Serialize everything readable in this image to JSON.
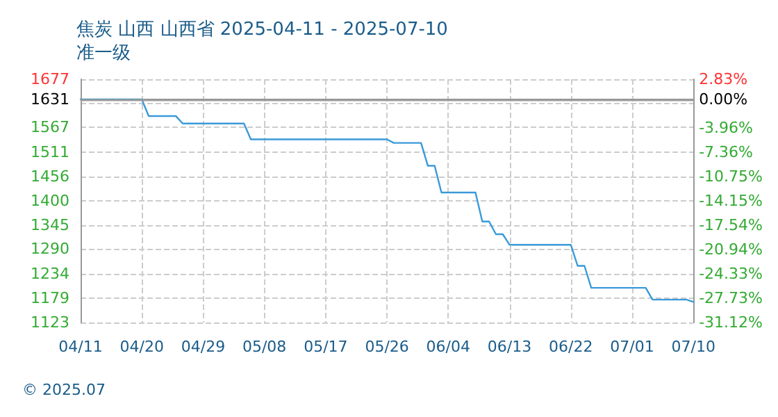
{
  "chart_data": {
    "type": "line",
    "title": "焦炭 山西 山西省 2025-04-11 - 2025-07-10",
    "subtitle": "准一级",
    "annotations": [
      "© 2025.07"
    ],
    "x": [
      "2025-04-11",
      "2025-04-20",
      "2025-04-21",
      "2025-04-25",
      "2025-04-26",
      "2025-05-05",
      "2025-05-06",
      "2025-05-26",
      "2025-05-27",
      "2025-05-31",
      "2025-06-01",
      "2025-06-02",
      "2025-06-03",
      "2025-06-08",
      "2025-06-09",
      "2025-06-10",
      "2025-06-11",
      "2025-06-12",
      "2025-06-13",
      "2025-06-22",
      "2025-06-23",
      "2025-06-24",
      "2025-06-25",
      "2025-07-03",
      "2025-07-04",
      "2025-07-09",
      "2025-07-10"
    ],
    "series": [
      {
        "color": "#3a9ad9",
        "values": [
          1631,
          1631,
          1593,
          1593,
          1576,
          1576,
          1540,
          1540,
          1532,
          1532,
          1480,
          1480,
          1419,
          1419,
          1353,
          1353,
          1324,
          1324,
          1300,
          1300,
          1252,
          1252,
          1202,
          1202,
          1175,
          1175,
          1170
        ]
      }
    ],
    "xlim": [
      "2025-04-11",
      "2025-07-10"
    ],
    "xticks": [
      {
        "value": "2025-04-11",
        "label": "04/11"
      },
      {
        "value": "2025-04-20",
        "label": "04/20"
      },
      {
        "value": "2025-04-29",
        "label": "04/29"
      },
      {
        "value": "2025-05-08",
        "label": "05/08"
      },
      {
        "value": "2025-05-17",
        "label": "05/17"
      },
      {
        "value": "2025-05-26",
        "label": "05/26"
      },
      {
        "value": "2025-06-04",
        "label": "06/04"
      },
      {
        "value": "2025-06-13",
        "label": "06/13"
      },
      {
        "value": "2025-06-22",
        "label": "06/22"
      },
      {
        "value": "2025-07-01",
        "label": "07/01"
      },
      {
        "value": "2025-07-10",
        "label": "07/10"
      }
    ],
    "ylim": [
      1123,
      1677
    ],
    "yticks": [
      1123,
      1179,
      1234,
      1290,
      1345,
      1400,
      1456,
      1511,
      1567,
      {
        "value": 1622,
        "label": null
      },
      1631,
      1677
    ],
    "y2lim": [
      -31.12,
      2.83
    ],
    "y2ticks": [
      {
        "value": -31.12,
        "label": "-31.12%"
      },
      {
        "value": -27.73,
        "label": "-27.73%"
      },
      {
        "value": -24.33,
        "label": "-24.33%"
      },
      {
        "value": -20.94,
        "label": "-20.94%"
      },
      {
        "value": -17.54,
        "label": "-17.54%"
      },
      {
        "value": -14.15,
        "label": "-14.15%"
      },
      {
        "value": -10.75,
        "label": "-10.75%"
      },
      {
        "value": -7.36,
        "label": "-7.36%"
      },
      {
        "value": -3.96,
        "label": "-3.96%"
      },
      {
        "value": 0,
        "label": "0.00%"
      },
      {
        "value": 2.83,
        "label": "2.83%"
      }
    ],
    "ref_lines": [
      {
        "axis": "y",
        "value": 1631,
        "label": null,
        "color": "#999999"
      }
    ],
    "grid": true,
    "marker": "none",
    "line_style": "solid"
  }
}
